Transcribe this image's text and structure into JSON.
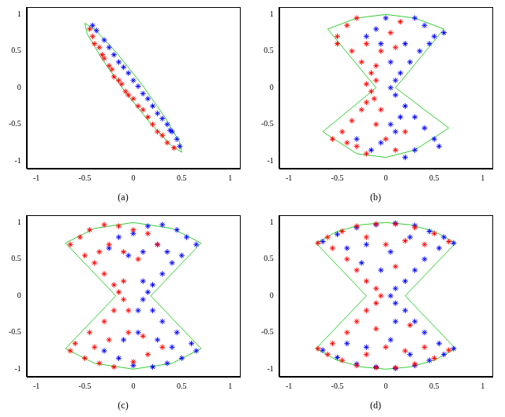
{
  "chart_data": [
    {
      "type": "scatter",
      "title": "(a)",
      "grid": false,
      "xlim": [
        -1.1,
        1.1
      ],
      "ylim": [
        -1.1,
        1.1
      ],
      "xticks": [
        -1,
        -0.5,
        0,
        0.5,
        1
      ],
      "yticks": [
        -1,
        -0.5,
        0,
        0.5,
        1
      ],
      "series": [
        {
          "color": "#ff0000",
          "marker": "star",
          "x": [
            -0.45,
            -0.42,
            -0.4,
            -0.35,
            -0.32,
            -0.3,
            -0.25,
            -0.22,
            -0.2,
            -0.15,
            -0.12,
            -0.08,
            -0.05,
            0,
            0.05,
            0.1,
            0.15,
            0.2,
            0.25,
            0.3,
            0.35,
            0.42
          ],
          "y": [
            0.8,
            0.7,
            0.6,
            0.55,
            0.45,
            0.4,
            0.3,
            0.25,
            0.15,
            0.1,
            0.05,
            -0.05,
            -0.1,
            -0.15,
            -0.25,
            -0.3,
            -0.4,
            -0.5,
            -0.6,
            -0.65,
            -0.75,
            -0.82
          ]
        },
        {
          "color": "#0000ff",
          "marker": "star",
          "x": [
            -0.42,
            -0.38,
            -0.3,
            -0.25,
            -0.2,
            -0.15,
            -0.1,
            -0.05,
            0,
            0.05,
            0.1,
            0.15,
            0.2,
            0.25,
            0.3,
            0.35,
            0.4,
            0.45,
            0.48,
            0.38
          ],
          "y": [
            0.85,
            0.78,
            0.65,
            0.55,
            0.45,
            0.35,
            0.28,
            0.2,
            0.1,
            0.02,
            -0.08,
            -0.15,
            -0.25,
            -0.35,
            -0.42,
            -0.5,
            -0.6,
            -0.7,
            -0.8,
            -0.58
          ]
        },
        {
          "type": "line",
          "color": "#33cc33",
          "line_style": "solid",
          "x": [
            0.5,
            0.477,
            0.325,
            0.087,
            -0.175,
            -0.39,
            -0.5,
            -0.477,
            -0.325,
            -0.087,
            0.175,
            0.39,
            0.5
          ],
          "y": [
            -0.88,
            -0.738,
            -0.398,
            0.049,
            0.482,
            0.787,
            0.88,
            0.738,
            0.398,
            -0.049,
            -0.482,
            -0.787,
            -0.88
          ]
        }
      ]
    },
    {
      "type": "scatter",
      "title": "(b)",
      "grid": false,
      "xlim": [
        -1.1,
        1.1
      ],
      "ylim": [
        -1.1,
        1.1
      ],
      "xticks": [
        -1,
        -0.5,
        0,
        0.5,
        1
      ],
      "yticks": [
        -1,
        -0.5,
        0,
        0.5,
        1
      ],
      "series": [
        {
          "color": "#ff0000",
          "marker": "star",
          "x": [
            -0.5,
            -0.4,
            -0.3,
            -0.2,
            -0.35,
            -0.25,
            -0.15,
            -0.1,
            -0.2,
            -0.15,
            -0.12,
            -0.25,
            -0.35,
            -0.45,
            -0.55,
            -0.3,
            -0.2,
            -0.1,
            0,
            0.1,
            0.05,
            0.15,
            -0.05,
            0.2,
            -0.4,
            -0.1,
            0.1,
            -0.5,
            -0.2,
            -0.05
          ],
          "y": [
            0.7,
            0.85,
            0.95,
            0.6,
            0.5,
            0.35,
            0.2,
            0.1,
            0.05,
            -0.05,
            -0.15,
            -0.3,
            -0.45,
            -0.6,
            -0.7,
            -0.8,
            -0.9,
            -0.5,
            -0.7,
            -0.85,
            0.75,
            0.9,
            0.5,
            -0.6,
            -0.75,
            0.3,
            0.55,
            0.6,
            -0.2,
            -0.3
          ]
        },
        {
          "color": "#0000ff",
          "marker": "star",
          "x": [
            0.5,
            0.4,
            0.3,
            0.2,
            0.35,
            0.25,
            0.15,
            0.1,
            0.05,
            0.1,
            0.2,
            0.3,
            0.4,
            0.5,
            0.55,
            0.3,
            0.2,
            0.05,
            -0.05,
            -0.15,
            -0.1,
            0,
            -0.2,
            0.15,
            0.45,
            0.05,
            -0.05,
            0.6,
            0.1,
            -0.3
          ],
          "y": [
            0.7,
            0.85,
            0.95,
            0.6,
            0.5,
            0.35,
            0.2,
            0.1,
            0,
            -0.1,
            -0.25,
            -0.4,
            -0.55,
            -0.7,
            -0.8,
            -0.85,
            -0.95,
            -0.5,
            -0.75,
            -0.85,
            0.8,
            0.95,
            0.7,
            -0.4,
            0.6,
            0.35,
            0.6,
            0.75,
            -0.6,
            -0.7
          ]
        },
        {
          "type": "line",
          "color": "#33cc33",
          "line_style": "solid",
          "x": [
            -0.6,
            -0.3,
            0,
            0.3,
            0.6,
            0.1,
            0.65,
            0.3,
            0,
            -0.3,
            -0.65,
            -0.1,
            -0.6
          ],
          "y": [
            0.8,
            0.95,
            1,
            0.95,
            0.8,
            0,
            -0.55,
            -0.85,
            -0.95,
            -0.9,
            -0.6,
            0,
            0.8
          ]
        }
      ]
    },
    {
      "type": "scatter",
      "title": "(c)",
      "grid": false,
      "xlim": [
        -1.1,
        1.1
      ],
      "ylim": [
        -1.1,
        1.1
      ],
      "xticks": [
        -1,
        -0.5,
        0,
        0.5,
        1
      ],
      "yticks": [
        -1,
        -0.5,
        0,
        0.5,
        1
      ],
      "series": [
        {
          "color": "#ff0000",
          "marker": "star",
          "x": [
            -0.65,
            -0.55,
            -0.45,
            -0.3,
            -0.15,
            0,
            0.15,
            -0.5,
            -0.4,
            -0.3,
            -0.2,
            -0.15,
            -0.1,
            -0.2,
            -0.3,
            -0.45,
            -0.6,
            -0.65,
            -0.5,
            -0.35,
            -0.2,
            0,
            0.15,
            0.3,
            -0.1,
            0.05,
            -0.25,
            -0.35,
            -0.05,
            -0.25,
            -0.4,
            0.1,
            0.25,
            -0.1,
            -0.05
          ],
          "y": [
            0.7,
            0.8,
            0.9,
            0.97,
            0.95,
            0.9,
            0.85,
            0.55,
            0.45,
            0.3,
            0.15,
            0.05,
            -0.05,
            -0.2,
            -0.35,
            -0.5,
            -0.65,
            -0.75,
            -0.85,
            -0.92,
            -0.97,
            -0.9,
            -0.8,
            -0.7,
            0.6,
            0.5,
            0.7,
            0.6,
            -0.5,
            -0.6,
            -0.7,
            -0.55,
            0.7,
            0.2,
            -0.2
          ]
        },
        {
          "color": "#0000ff",
          "marker": "star",
          "x": [
            0.65,
            0.55,
            0.45,
            0.3,
            0.15,
            0,
            -0.15,
            0.5,
            0.4,
            0.3,
            0.2,
            0.15,
            0.1,
            0.2,
            0.3,
            0.45,
            0.6,
            0.65,
            0.5,
            0.35,
            0.2,
            0,
            -0.15,
            -0.3,
            0.1,
            -0.05,
            0.25,
            0.35,
            0.05,
            0.25,
            0.4,
            -0.1,
            -0.25,
            0.1,
            0.05
          ],
          "y": [
            0.7,
            0.8,
            0.9,
            0.97,
            0.95,
            0.85,
            0.8,
            0.55,
            0.45,
            0.3,
            0.15,
            0.05,
            -0.05,
            -0.2,
            -0.35,
            -0.5,
            -0.65,
            -0.75,
            -0.85,
            -0.92,
            -0.97,
            -0.95,
            -0.85,
            -0.75,
            0.6,
            0.55,
            0.7,
            0.6,
            -0.5,
            -0.6,
            -0.7,
            -0.6,
            0.65,
            0.2,
            -0.2
          ]
        },
        {
          "type": "line",
          "color": "#33cc33",
          "line_style": "solid",
          "x": [
            -0.7,
            -0.4,
            0,
            0.4,
            0.7,
            0.18,
            0.7,
            0.4,
            0,
            -0.4,
            -0.7,
            -0.18,
            -0.7
          ],
          "y": [
            0.72,
            0.92,
            1,
            0.92,
            0.72,
            0,
            -0.72,
            -0.92,
            -1,
            -0.92,
            -0.72,
            0,
            0.72
          ]
        }
      ]
    },
    {
      "type": "scatter",
      "title": "(d)",
      "grid": false,
      "xlim": [
        -1.1,
        1.1
      ],
      "ylim": [
        -1.1,
        1.1
      ],
      "xticks": [
        -1,
        -0.5,
        0,
        0.5,
        1
      ],
      "yticks": [
        -1,
        -0.5,
        0,
        0.5,
        1
      ],
      "series": [
        {
          "color": "#ff0000",
          "marker": "star",
          "x": [
            -0.7,
            -0.6,
            -0.45,
            -0.3,
            -0.1,
            0.1,
            0.3,
            0.5,
            0.65,
            -0.55,
            -0.4,
            -0.3,
            -0.2,
            -0.1,
            -0.05,
            -0.1,
            -0.2,
            -0.3,
            -0.4,
            -0.55,
            -0.7,
            -0.6,
            -0.45,
            -0.3,
            -0.1,
            0.1,
            0.3,
            0.5,
            0.65,
            0,
            0.2,
            -0.2,
            0.4,
            0,
            0.2,
            -0.2,
            0.4,
            0.1,
            -0.1,
            0.25
          ],
          "y": [
            0.72,
            0.8,
            0.88,
            0.95,
            0.98,
            0.98,
            0.93,
            0.85,
            0.74,
            0.65,
            0.5,
            0.35,
            0.2,
            0.1,
            0,
            -0.1,
            -0.2,
            -0.35,
            -0.5,
            -0.65,
            -0.72,
            -0.8,
            -0.88,
            -0.95,
            -0.98,
            -0.98,
            -0.93,
            -0.85,
            -0.74,
            0.7,
            0.75,
            0.8,
            0.7,
            -0.7,
            -0.75,
            -0.8,
            -0.7,
            0.4,
            -0.45,
            -0.4
          ]
        },
        {
          "color": "#0000ff",
          "marker": "star",
          "x": [
            0.7,
            0.6,
            0.45,
            0.3,
            0.1,
            -0.1,
            -0.3,
            -0.5,
            -0.65,
            0.55,
            0.4,
            0.3,
            0.2,
            0.1,
            0.05,
            0.1,
            0.2,
            0.3,
            0.4,
            0.55,
            0.7,
            0.6,
            0.45,
            0.3,
            0.1,
            -0.1,
            -0.3,
            -0.5,
            -0.65,
            0.05,
            -0.2,
            0.25,
            -0.4,
            0.05,
            -0.2,
            0.25,
            -0.4,
            -0.05,
            0.1,
            -0.25
          ],
          "y": [
            0.72,
            0.8,
            0.88,
            0.96,
            0.99,
            0.97,
            0.93,
            0.84,
            0.74,
            0.65,
            0.5,
            0.35,
            0.2,
            0.1,
            0,
            -0.1,
            -0.2,
            -0.35,
            -0.5,
            -0.65,
            -0.72,
            -0.8,
            -0.88,
            -0.95,
            -0.99,
            -0.97,
            -0.93,
            -0.84,
            -0.74,
            0.6,
            0.7,
            0.8,
            0.65,
            -0.6,
            -0.7,
            -0.8,
            -0.65,
            0.35,
            -0.35,
            0.45
          ]
        },
        {
          "type": "line",
          "color": "#33cc33",
          "line_style": "solid",
          "x": [
            -0.72,
            -0.5,
            -0.25,
            0,
            0.25,
            0.5,
            0.72,
            0.2,
            0.72,
            0.5,
            0.25,
            0,
            -0.25,
            -0.5,
            -0.72,
            -0.2,
            -0.72
          ],
          "y": [
            0.72,
            0.88,
            0.97,
            1,
            0.97,
            0.88,
            0.72,
            0,
            -0.72,
            -0.88,
            -0.97,
            -1,
            -0.97,
            -0.88,
            -0.72,
            0,
            0.72
          ]
        }
      ]
    }
  ]
}
